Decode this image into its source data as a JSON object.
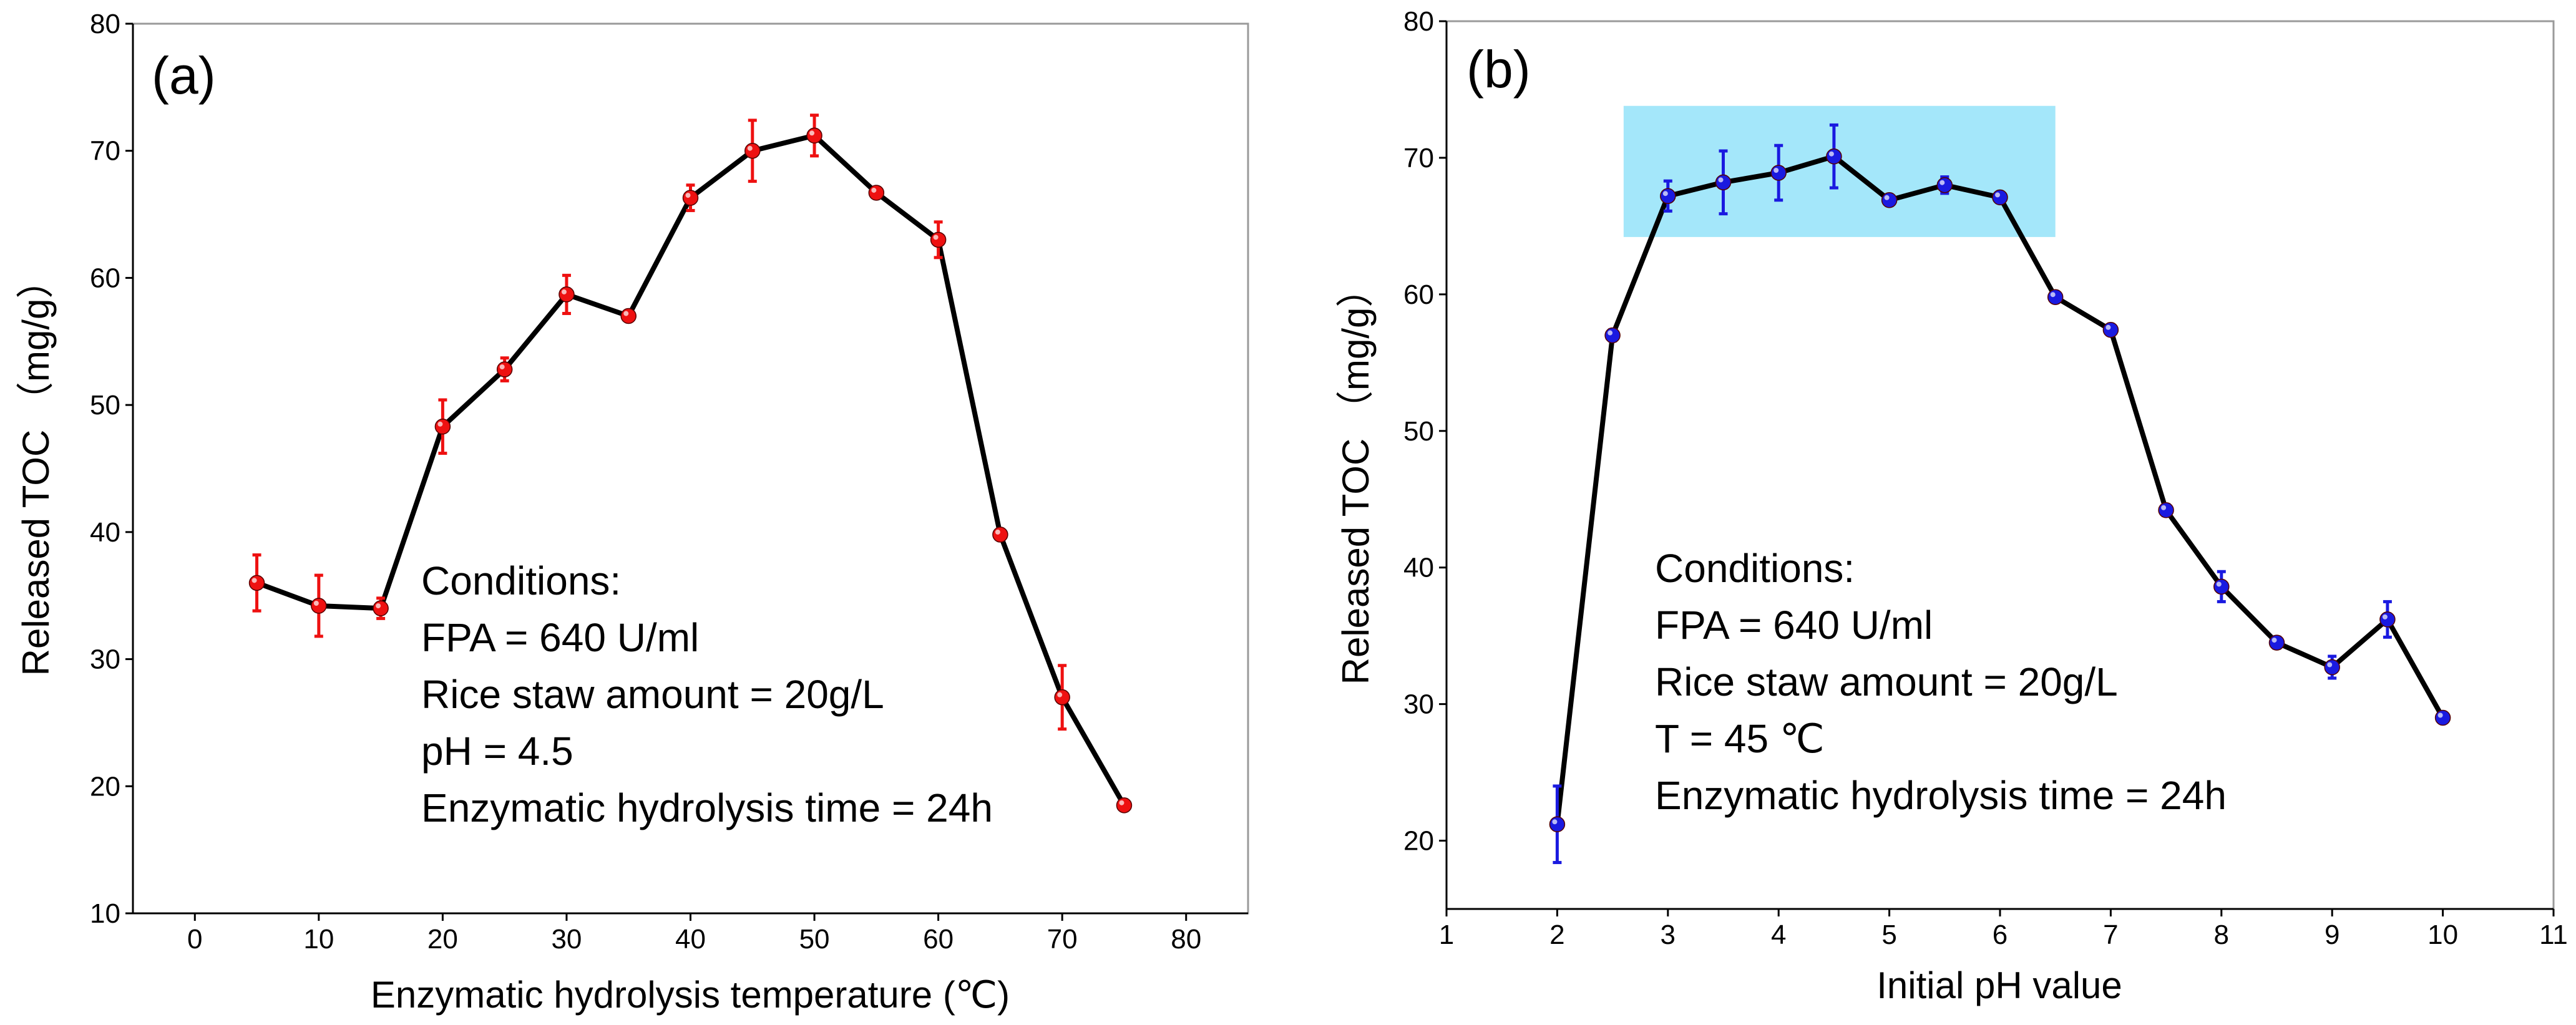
{
  "colors": {
    "panel_a_marker": "#ee1111",
    "panel_b_marker": "#1a1ae0",
    "highlight": "#9fe6fa",
    "line": "#000000"
  },
  "chart_data": [
    {
      "type": "line",
      "panel_label": "(a)",
      "xlabel": "Enzymatic hydrolysis temperature (℃)",
      "ylabel": "Released TOC （mg/g）",
      "xlim": [
        -5,
        85
      ],
      "ylim": [
        10,
        80
      ],
      "xticks": [
        0,
        10,
        20,
        30,
        40,
        50,
        60,
        70,
        80
      ],
      "yticks": [
        10,
        20,
        30,
        40,
        50,
        60,
        70,
        80
      ],
      "x": [
        5,
        10,
        15,
        20,
        25,
        30,
        35,
        40,
        45,
        50,
        55,
        60,
        65,
        70,
        75
      ],
      "y": [
        36,
        34.2,
        34,
        48.3,
        52.8,
        58.7,
        57,
        66.3,
        70,
        71.2,
        66.7,
        63,
        39.8,
        27,
        18.5
      ],
      "yerr": [
        2.2,
        2.4,
        0.8,
        2.1,
        0.9,
        1.5,
        0.4,
        1.0,
        2.4,
        1.6,
        0.4,
        1.4,
        0.3,
        2.5,
        0.2
      ],
      "conditions": [
        "Conditions:",
        "FPA = 640 U/ml",
        "Rice staw amount = 20g/L",
        "pH = 4.5",
        "Enzymatic hydrolysis time = 24h"
      ]
    },
    {
      "type": "line",
      "panel_label": "(b)",
      "xlabel": "Initial pH value",
      "ylabel": "Released TOC （mg/g）",
      "xlim": [
        1,
        11
      ],
      "ylim": [
        15,
        80
      ],
      "xticks": [
        1,
        2,
        3,
        4,
        5,
        6,
        7,
        8,
        9,
        10,
        11
      ],
      "yticks": [
        20,
        30,
        40,
        50,
        60,
        70,
        80
      ],
      "x": [
        2,
        2.5,
        3,
        3.5,
        4,
        4.5,
        5,
        5.5,
        6,
        6.5,
        7,
        7.5,
        8,
        8.5,
        9,
        9.5,
        10
      ],
      "y": [
        21.2,
        57,
        67.2,
        68.2,
        68.9,
        70.1,
        66.9,
        68,
        67.1,
        59.8,
        57.4,
        44.2,
        38.6,
        34.5,
        32.7,
        36.2,
        29
      ],
      "yerr": [
        2.8,
        0.4,
        1.1,
        2.3,
        2.0,
        2.3,
        0.3,
        0.6,
        0.3,
        0.3,
        0.3,
        0.4,
        1.1,
        0.4,
        0.8,
        1.3,
        0.3
      ],
      "highlight_band": {
        "x_range": [
          2.6,
          6.5
        ],
        "y_range": [
          64.2,
          73.8
        ]
      },
      "conditions": [
        "Conditions:",
        "FPA = 640 U/ml",
        "Rice staw amount = 20g/L",
        "T = 45 ℃",
        "Enzymatic hydrolysis time = 24h"
      ]
    }
  ]
}
